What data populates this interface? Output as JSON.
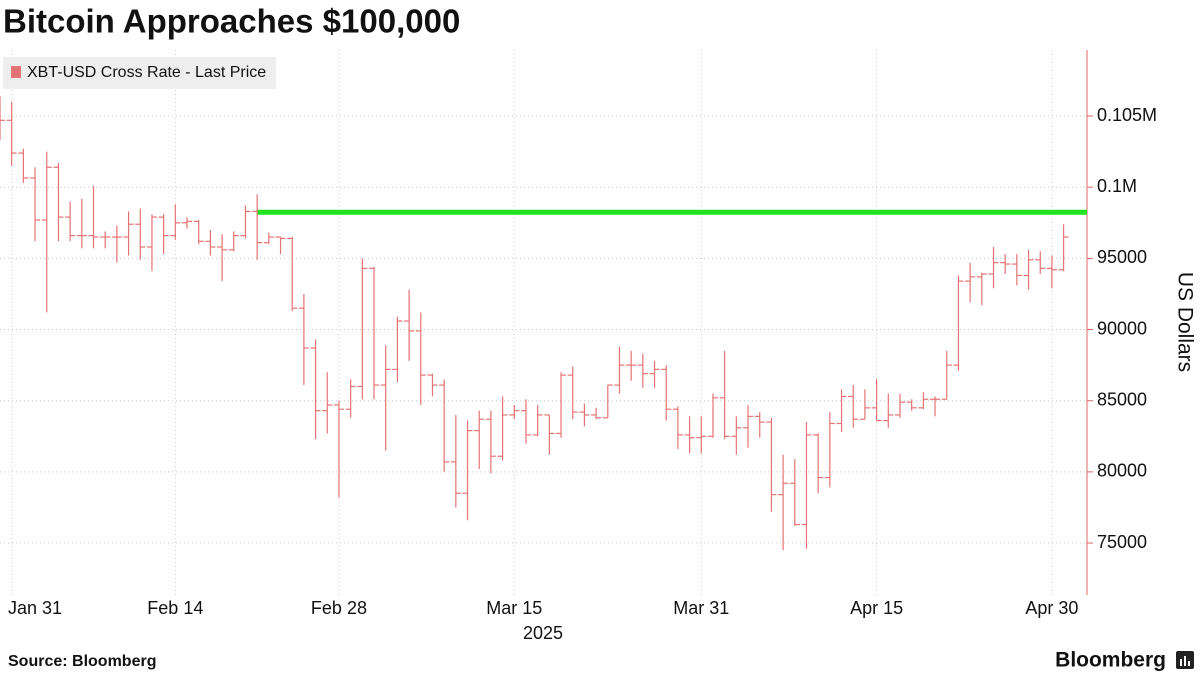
{
  "chart_data": {
    "type": "ohlc",
    "title": "Bitcoin Approaches $100,000",
    "ylabel": "US Dollars",
    "xlabel": "2025",
    "source": "Source: Bloomberg",
    "brand": "Bloomberg",
    "grid": true,
    "legend": "top-left",
    "xlim": [
      "2025-01-30",
      "2025-05-03"
    ],
    "xticks": [
      {
        "value": "2025-01-31",
        "label": "Jan 31"
      },
      {
        "value": "2025-02-14",
        "label": "Feb 14"
      },
      {
        "value": "2025-02-28",
        "label": "Feb 28"
      },
      {
        "value": "2025-03-15",
        "label": "Mar 15"
      },
      {
        "value": "2025-03-31",
        "label": "Mar 31"
      },
      {
        "value": "2025-04-15",
        "label": "Apr 15"
      },
      {
        "value": "2025-04-30",
        "label": "Apr 30"
      }
    ],
    "ylim": [
      71350,
      109640
    ],
    "yticks": [
      75000,
      80000,
      85000,
      90000,
      95000,
      {
        "value": 100000,
        "label": "0.1M"
      },
      {
        "value": 105000,
        "label": "0.105M"
      }
    ],
    "reference_line": {
      "value": 98240,
      "from": "2025-02-21",
      "color": "#22e322"
    },
    "x": [
      "2025-01-30",
      "2025-01-31",
      "2025-02-01",
      "2025-02-02",
      "2025-02-03",
      "2025-02-04",
      "2025-02-05",
      "2025-02-06",
      "2025-02-07",
      "2025-02-08",
      "2025-02-09",
      "2025-02-10",
      "2025-02-11",
      "2025-02-12",
      "2025-02-13",
      "2025-02-14",
      "2025-02-15",
      "2025-02-16",
      "2025-02-17",
      "2025-02-18",
      "2025-02-19",
      "2025-02-20",
      "2025-02-21",
      "2025-02-22",
      "2025-02-23",
      "2025-02-24",
      "2025-02-25",
      "2025-02-26",
      "2025-02-27",
      "2025-02-28",
      "2025-03-01",
      "2025-03-02",
      "2025-03-03",
      "2025-03-04",
      "2025-03-05",
      "2025-03-06",
      "2025-03-07",
      "2025-03-08",
      "2025-03-09",
      "2025-03-10",
      "2025-03-11",
      "2025-03-12",
      "2025-03-13",
      "2025-03-14",
      "2025-03-15",
      "2025-03-16",
      "2025-03-17",
      "2025-03-18",
      "2025-03-19",
      "2025-03-20",
      "2025-03-21",
      "2025-03-22",
      "2025-03-23",
      "2025-03-24",
      "2025-03-25",
      "2025-03-26",
      "2025-03-27",
      "2025-03-28",
      "2025-03-29",
      "2025-03-30",
      "2025-03-31",
      "2025-04-01",
      "2025-04-02",
      "2025-04-03",
      "2025-04-04",
      "2025-04-05",
      "2025-04-06",
      "2025-04-07",
      "2025-04-08",
      "2025-04-09",
      "2025-04-10",
      "2025-04-11",
      "2025-04-12",
      "2025-04-13",
      "2025-04-14",
      "2025-04-15",
      "2025-04-16",
      "2025-04-17",
      "2025-04-18",
      "2025-04-19",
      "2025-04-20",
      "2025-04-21",
      "2025-04-22",
      "2025-04-23",
      "2025-04-24",
      "2025-04-25",
      "2025-04-26",
      "2025-04-27",
      "2025-04-28",
      "2025-04-29",
      "2025-04-30",
      "2025-05-01"
    ],
    "series": [
      {
        "name": "XBT-USD Cross Rate - Last Price",
        "color": "#e57373",
        "open": [
          103700,
          104700,
          102400,
          100650,
          97700,
          101400,
          97900,
          96600,
          96600,
          96500,
          96500,
          96500,
          97400,
          95800,
          97900,
          96600,
          97500,
          97600,
          96200,
          95800,
          95600,
          96600,
          98300,
          96100,
          96500,
          96400,
          91500,
          88700,
          84300,
          84700,
          84400,
          86000,
          94300,
          86100,
          87200,
          90600,
          89900,
          86800,
          86100,
          80700,
          78500,
          82900,
          83700,
          81100,
          84000,
          84300,
          82600,
          84000,
          82700,
          86800,
          84200,
          84000,
          83800,
          86100,
          87500,
          87500,
          86900,
          87200,
          84400,
          82600,
          82400,
          82500,
          85200,
          82500,
          83100,
          83900,
          83500,
          78400,
          79200,
          76300,
          82600,
          79600,
          83400,
          85300,
          83700,
          84500,
          83600,
          84000,
          84900,
          84500,
          85100,
          85100,
          87500,
          93400,
          93700,
          93900,
          94700,
          94600,
          93800,
          94900,
          94300,
          94200
        ],
        "high": [
          106400,
          106000,
          102700,
          101400,
          102500,
          101700,
          99000,
          99200,
          100100,
          96900,
          97300,
          98300,
          98500,
          98100,
          98100,
          98800,
          97900,
          97700,
          97000,
          96700,
          96900,
          98700,
          99500,
          96800,
          96500,
          96500,
          92500,
          89300,
          87000,
          85000,
          86500,
          95000,
          94400,
          88900,
          90900,
          92800,
          91200,
          86900,
          86500,
          84000,
          83600,
          84300,
          84300,
          85300,
          84700,
          85100,
          84700,
          84000,
          87000,
          87400,
          84800,
          84500,
          86100,
          88800,
          88500,
          88300,
          87800,
          87500,
          84600,
          83900,
          83900,
          85500,
          88500,
          83900,
          84700,
          84200,
          83800,
          81200,
          80900,
          83500,
          82700,
          84200,
          85800,
          86100,
          85800,
          86500,
          85500,
          85500,
          85100,
          85600,
          85300,
          88500,
          93800,
          94700,
          94000,
          95800,
          95300,
          95300,
          95600,
          95500,
          95200,
          97400
        ],
        "low": [
          103300,
          101500,
          100300,
          96200,
          91200,
          96200,
          96200,
          95700,
          95700,
          95700,
          94700,
          95200,
          94900,
          94100,
          95300,
          96300,
          97100,
          96000,
          95200,
          93400,
          95500,
          96400,
          94900,
          96000,
          95300,
          91300,
          86100,
          82300,
          82700,
          78200,
          83800,
          85100,
          85100,
          81500,
          86300,
          87800,
          84700,
          85300,
          80000,
          77500,
          76600,
          80200,
          79900,
          80800,
          83700,
          82000,
          82500,
          81200,
          82400,
          83700,
          83200,
          83700,
          83800,
          85500,
          86400,
          85900,
          85900,
          83600,
          81600,
          81300,
          81300,
          82400,
          82300,
          81200,
          81700,
          82400,
          77200,
          74500,
          76200,
          74600,
          78500,
          78900,
          82800,
          83100,
          83700,
          83600,
          83100,
          83800,
          84300,
          84400,
          83900,
          85100,
          87100,
          91900,
          91700,
          92900,
          93900,
          93100,
          92800,
          93900,
          92900,
          94100
        ],
        "close": [
          104700,
          102400,
          100650,
          97700,
          101400,
          97900,
          96600,
          96600,
          96500,
          96500,
          96500,
          97400,
          95800,
          97900,
          96600,
          97500,
          97600,
          96200,
          95800,
          95600,
          96600,
          98300,
          96100,
          96500,
          96400,
          91500,
          88700,
          84300,
          84700,
          84400,
          86000,
          94300,
          86100,
          87200,
          90600,
          89900,
          86800,
          86100,
          80700,
          78500,
          82900,
          83700,
          81100,
          84000,
          84300,
          82600,
          84000,
          82700,
          86800,
          84200,
          84000,
          83800,
          86100,
          87500,
          87500,
          86900,
          87200,
          84400,
          82600,
          82400,
          82500,
          85200,
          82500,
          83100,
          83900,
          83500,
          78400,
          79200,
          76300,
          82600,
          79600,
          83400,
          85300,
          83700,
          84500,
          83600,
          84000,
          84900,
          84500,
          85100,
          85100,
          87500,
          93400,
          93700,
          93900,
          94700,
          94600,
          93800,
          94900,
          94300,
          94200,
          96500
        ]
      }
    ]
  }
}
